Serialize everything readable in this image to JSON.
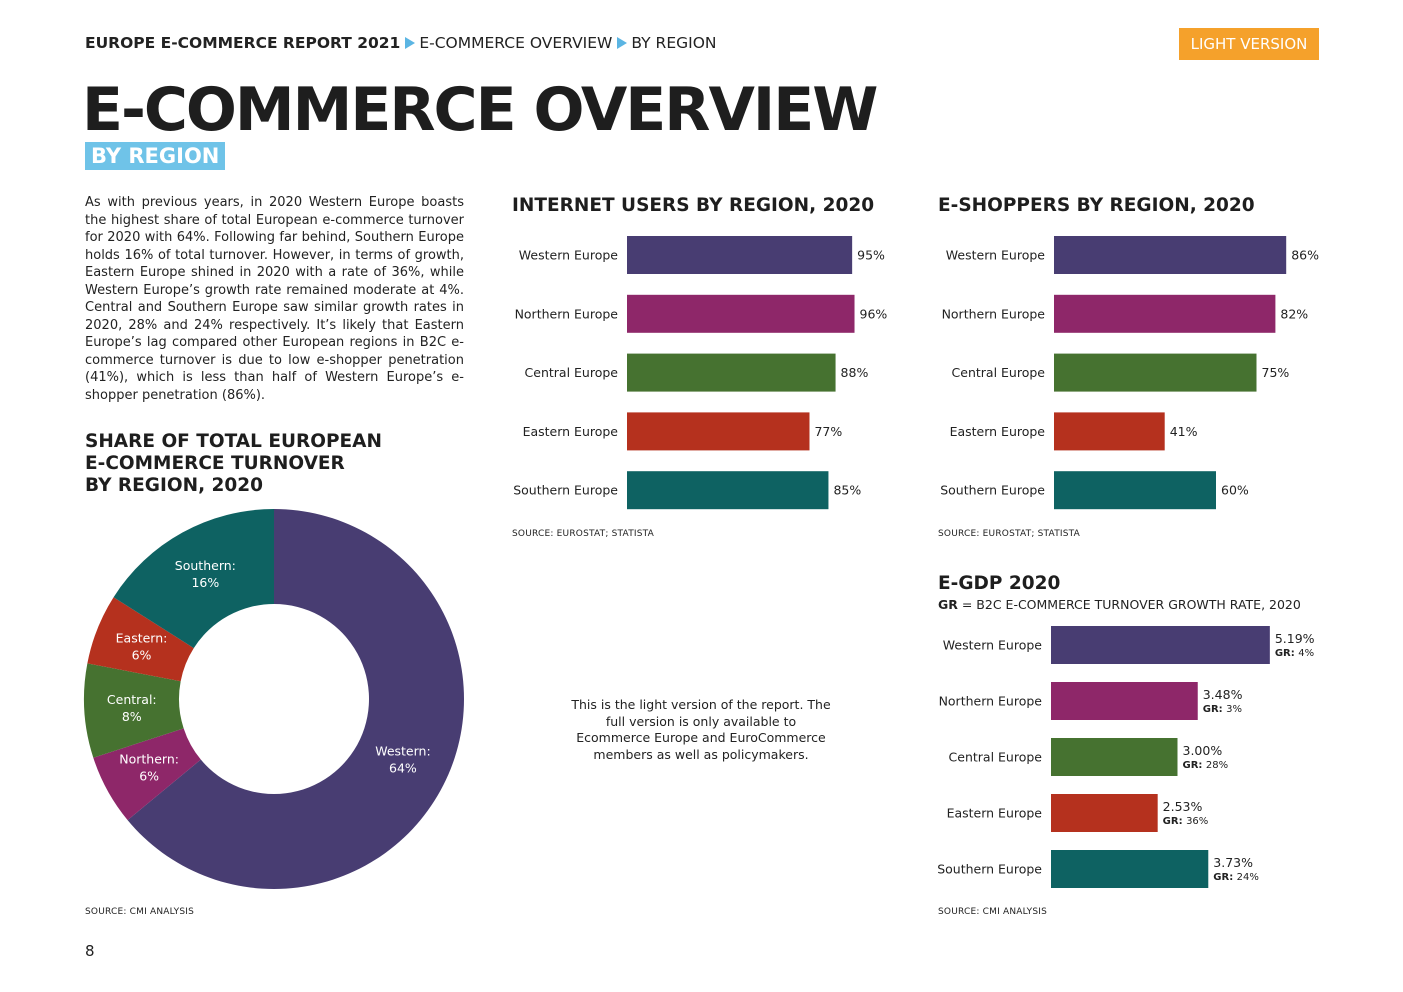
{
  "header": {
    "report": "EUROPE E-COMMERCE REPORT 2021",
    "section": "E-COMMERCE OVERVIEW",
    "subsection": "BY REGION",
    "version_badge": "LIGHT VERSION"
  },
  "title": "E-COMMERCE OVERVIEW",
  "subtitle": "BY REGION",
  "intro": "As with previous years, in 2020 Western Europe boasts the highest share of total European e-commerce turnover for 2020 with 64%. Following far behind, Southern Europe holds 16% of total turnover. However, in terms of growth, Eastern Europe shined in 2020 with a rate of 36%, while Western Europe’s growth rate remained moderate at 4%. Central and Southern Europe saw similar growth rates in 2020, 28% and 24% respectively. It’s likely that Eastern Europe’s lag compared other European regions in B2C e-commerce turnover is due to low e-shopper penetration (41%), which is less than half of Western Europe’s e-shopper penetration (86%).",
  "colors": {
    "western": "#483d72",
    "northern": "#8e2769",
    "central": "#467230",
    "eastern": "#b5311e",
    "southern": "#0e6262",
    "accent_blue": "#6fc3e8",
    "accent_orange": "#f5a12b"
  },
  "note": "This is the light version of the report. The full version is only available to Ecommerce Europe and EuroCommerce members as well as policymakers.",
  "egdp_legend": {
    "abbr": "GR",
    "text": " = B2C E-COMMERCE TURNOVER GROWTH RATE, 2020"
  },
  "page_number": "8",
  "chart_data": [
    {
      "type": "pie",
      "title": "SHARE OF TOTAL EUROPEAN E-COMMERCE TURNOVER BY REGION, 2020",
      "title_lines": [
        "SHARE OF TOTAL EUROPEAN",
        "E-COMMERCE TURNOVER",
        "BY REGION, 2020"
      ],
      "donut": true,
      "source": "SOURCE: CMI ANALYSIS",
      "slices": [
        {
          "label": "Western:",
          "value": 64,
          "display": "64%",
          "color": "#483d72"
        },
        {
          "label": "Northern:",
          "value": 6,
          "display": "6%",
          "color": "#8e2769"
        },
        {
          "label": "Central:",
          "value": 8,
          "display": "8%",
          "color": "#467230"
        },
        {
          "label": "Eastern:",
          "value": 6,
          "display": "6%",
          "color": "#b5311e"
        },
        {
          "label": "Southern:",
          "value": 16,
          "display": "16%",
          "color": "#0e6262"
        }
      ]
    },
    {
      "type": "bar",
      "orientation": "horizontal",
      "title": "INTERNET USERS BY REGION, 2020",
      "source": "SOURCE: EUROSTAT; STATISTA",
      "categories": [
        "Western Europe",
        "Northern Europe",
        "Central Europe",
        "Eastern Europe",
        "Southern Europe"
      ],
      "values": [
        95,
        96,
        88,
        77,
        85
      ],
      "labels": [
        "95%",
        "96%",
        "88%",
        "77%",
        "85%"
      ],
      "colors": [
        "#483d72",
        "#8e2769",
        "#467230",
        "#b5311e",
        "#0e6262"
      ],
      "xlim": [
        0,
        100
      ]
    },
    {
      "type": "bar",
      "orientation": "horizontal",
      "title": "E-SHOPPERS BY REGION, 2020",
      "source": "SOURCE: EUROSTAT; STATISTA",
      "categories": [
        "Western Europe",
        "Northern Europe",
        "Central Europe",
        "Eastern Europe",
        "Southern Europe"
      ],
      "values": [
        86,
        82,
        75,
        41,
        60
      ],
      "labels": [
        "86%",
        "82%",
        "75%",
        "41%",
        "60%"
      ],
      "colors": [
        "#483d72",
        "#8e2769",
        "#467230",
        "#b5311e",
        "#0e6262"
      ],
      "xlim": [
        0,
        100
      ]
    },
    {
      "type": "bar",
      "orientation": "horizontal",
      "title": "E-GDP 2020",
      "source": "SOURCE: CMI ANALYSIS",
      "categories": [
        "Western Europe",
        "Northern Europe",
        "Central Europe",
        "Eastern Europe",
        "Southern Europe"
      ],
      "values": [
        5.19,
        3.48,
        3.0,
        2.53,
        3.73
      ],
      "labels": [
        "5.19%",
        "3.48%",
        "3.00%",
        "2.53%",
        "3.73%"
      ],
      "gr_label": "GR:",
      "growth": [
        "4%",
        "3%",
        "28%",
        "36%",
        "24%"
      ],
      "colors": [
        "#483d72",
        "#8e2769",
        "#467230",
        "#b5311e",
        "#0e6262"
      ],
      "xlim": [
        0,
        6
      ]
    }
  ]
}
